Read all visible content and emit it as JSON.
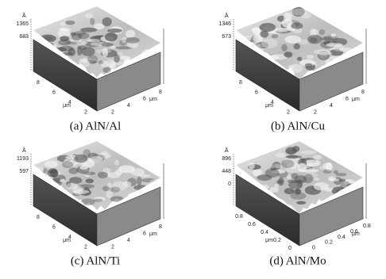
{
  "panels": [
    {
      "caption": "(a) AlN/Al",
      "z_unit": "Å",
      "z_ticks": [
        "1365",
        "683"
      ],
      "x_ticks": [
        "8",
        "6",
        "4",
        "2"
      ],
      "x_unit": "μm",
      "y_ticks": [
        "2",
        "4",
        "6",
        "8"
      ],
      "y_unit": "μm"
    },
    {
      "caption": "(b) AlN/Cu",
      "z_unit": "Å",
      "z_ticks": [
        "1346",
        "673"
      ],
      "x_ticks": [
        "8",
        "6",
        "4",
        "2"
      ],
      "x_unit": "μm",
      "y_ticks": [
        "2",
        "4",
        "6",
        "8"
      ],
      "y_unit": "μm"
    },
    {
      "caption": "(c) AlN/Ti",
      "z_unit": "Å",
      "z_ticks": [
        "1193",
        "597"
      ],
      "x_ticks": [
        "8",
        "6",
        "4",
        "2"
      ],
      "x_unit": "μm",
      "y_ticks": [
        "2",
        "4",
        "6",
        "8"
      ],
      "y_unit": "μm"
    },
    {
      "caption": "(d) AlN/Mo",
      "z_unit": "Å",
      "z_ticks": [
        "896",
        "448",
        "0"
      ],
      "x_ticks": [
        "0.8",
        "0.6",
        "0.4",
        "0.2",
        "0"
      ],
      "x_unit": "μm",
      "y_ticks": [
        "0",
        "0.2",
        "0.4",
        "0.6",
        "0.8"
      ],
      "y_unit": "μm"
    }
  ]
}
